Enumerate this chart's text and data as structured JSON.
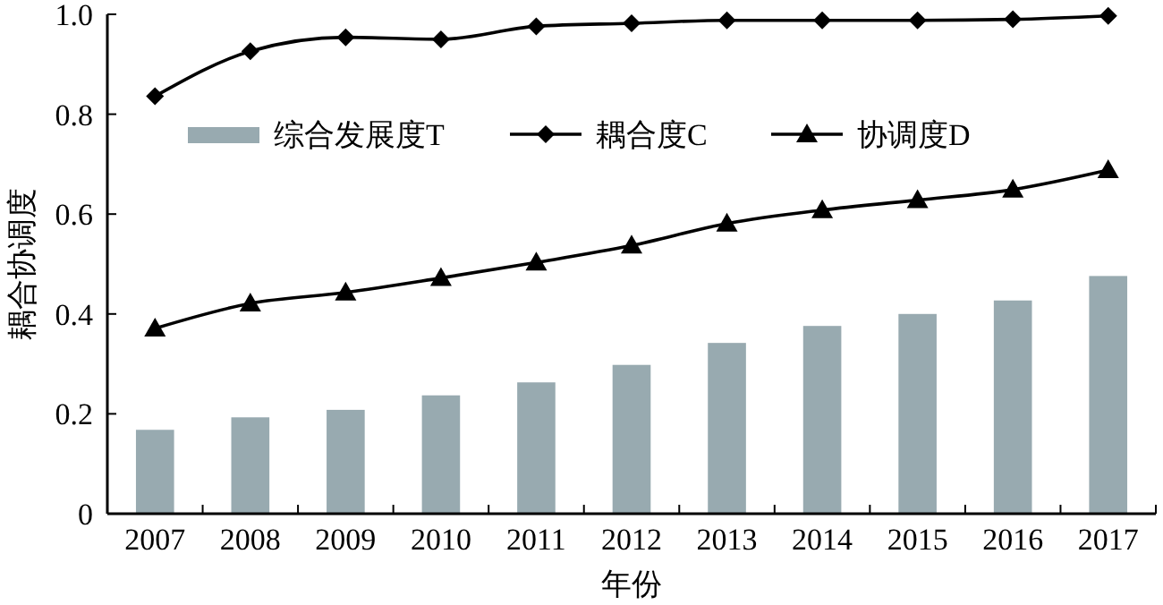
{
  "chart_data": {
    "type": "bar",
    "xlabel": "年份",
    "ylabel": "耦合协调度",
    "categories": [
      "2007",
      "2008",
      "2009",
      "2010",
      "2011",
      "2012",
      "2013",
      "2014",
      "2015",
      "2016",
      "2017"
    ],
    "series": [
      {
        "name": "综合发展度T",
        "color": "#98aab0",
        "values": [
          0.168,
          0.193,
          0.208,
          0.237,
          0.263,
          0.298,
          0.342,
          0.376,
          0.4,
          0.427,
          0.476
        ]
      },
      {
        "name": "耦合度C",
        "type": "line",
        "marker": "diamond",
        "color": "#000000",
        "values": [
          0.836,
          0.926,
          0.954,
          0.95,
          0.976,
          0.982,
          0.988,
          0.988,
          0.988,
          0.99,
          0.997
        ]
      },
      {
        "name": "协调度D",
        "type": "line",
        "marker": "triangle",
        "color": "#000000",
        "values": [
          0.371,
          0.421,
          0.443,
          0.472,
          0.503,
          0.537,
          0.581,
          0.608,
          0.628,
          0.649,
          0.688
        ]
      }
    ],
    "ylim": [
      0,
      1
    ],
    "yticks": [
      0,
      0.2,
      0.4,
      0.6,
      0.8,
      {
        "value": 1,
        "label": "1.0"
      }
    ],
    "legend": "top",
    "grid": false
  }
}
